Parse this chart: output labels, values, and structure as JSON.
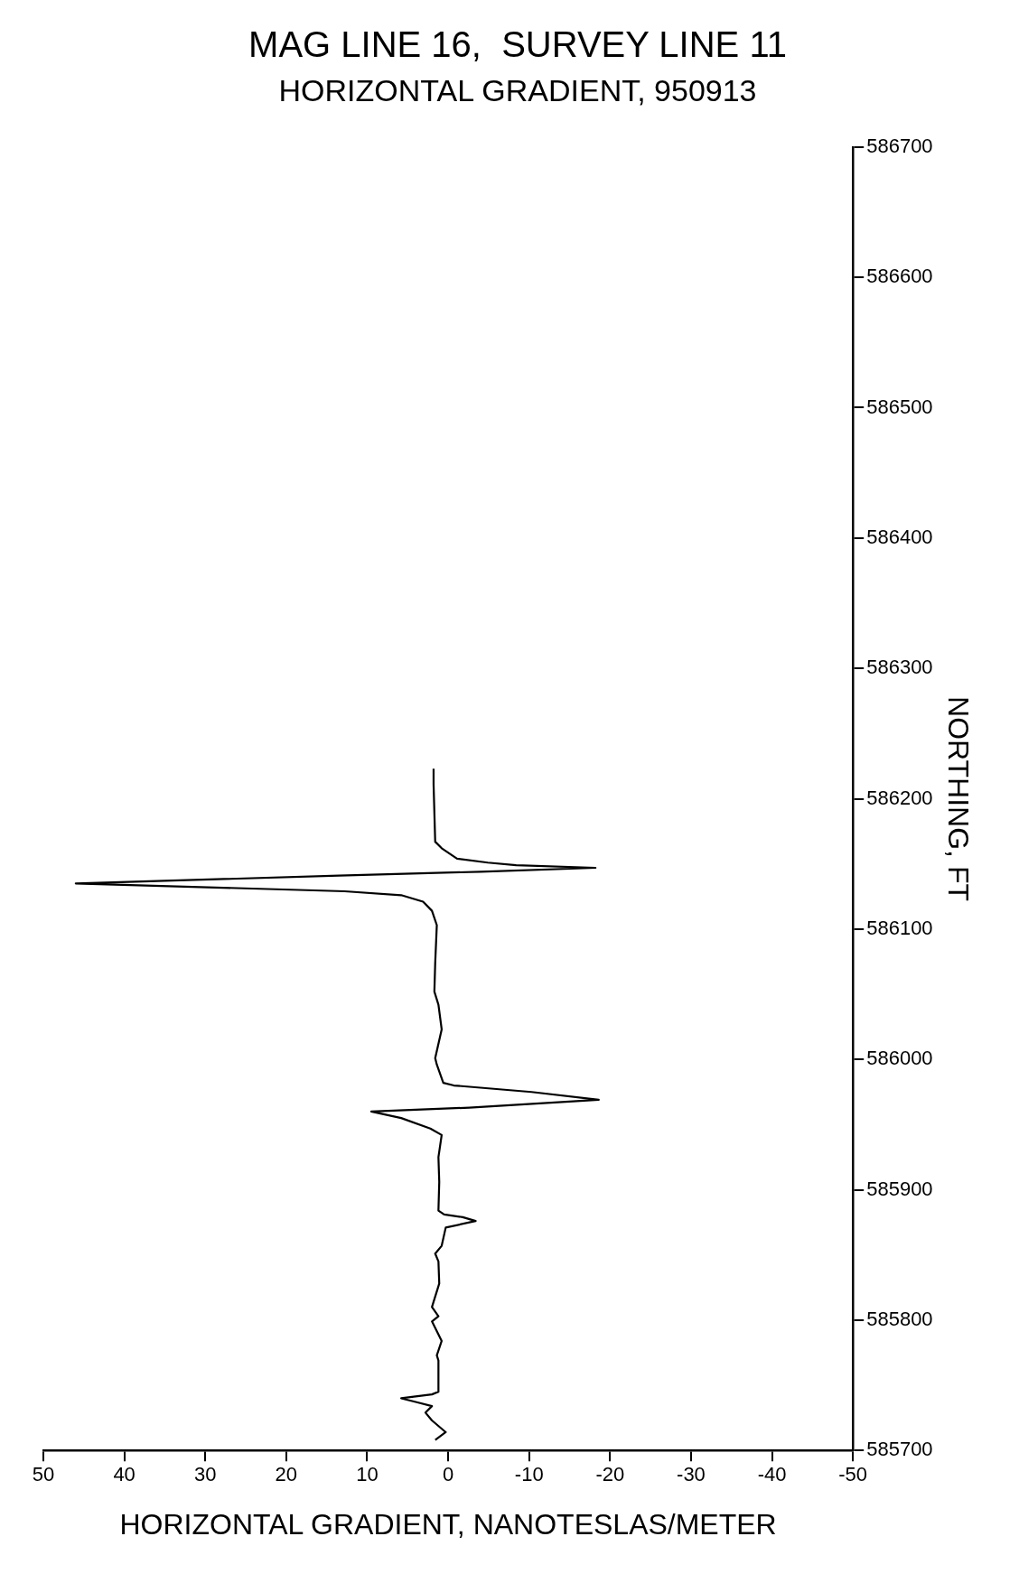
{
  "chart_data": {
    "type": "line",
    "title": "MAG LINE 16,  SURVEY LINE 11",
    "subtitle": "HORIZONTAL GRADIENT, 950913",
    "xlabel": "HORIZONTAL GRADIENT, NANOTESLAS/METER",
    "ylabel": "NORTHING, FT",
    "values": [
      585708,
      585714,
      585723,
      585729,
      585734,
      585737,
      585740,
      585743,
      585745,
      585769,
      585773,
      585784,
      585799,
      585803,
      585810,
      585828,
      585845,
      585851,
      585857,
      585871,
      585876,
      585879,
      585881,
      585884,
      585906,
      585925,
      585942,
      585947,
      585955,
      585960,
      585963,
      585969,
      585975,
      585980,
      585982,
      585996,
      586001,
      586023,
      586042,
      586052,
      586074,
      586103,
      586114,
      586121,
      586126,
      586129,
      586135,
      586141,
      586144,
      586147,
      586149,
      586151,
      586154,
      586162,
      586167,
      586211,
      586223
    ],
    "x": [
      1.6,
      0.3,
      2.0,
      2.8,
      2.0,
      3.9,
      5.8,
      2.0,
      1.2,
      1.2,
      1.4,
      0.8,
      2.0,
      1.2,
      2.0,
      1.1,
      1.2,
      1.6,
      0.8,
      0.3,
      -3.4,
      -1.8,
      0.5,
      1.2,
      1.1,
      1.2,
      0.8,
      2.2,
      5.8,
      9.5,
      -2.6,
      -18.6,
      -10.3,
      -0.7,
      0.6,
      1.4,
      1.6,
      0.8,
      1.2,
      1.7,
      1.6,
      1.4,
      2.0,
      3.1,
      5.8,
      12.8,
      46,
      13.5,
      -4,
      -18.2,
      -8.4,
      -4.9,
      -1.1,
      0.8,
      1.6,
      1.8,
      1.8
    ],
    "color": "#000000",
    "marker": "none",
    "line_style": "solid",
    "grid": false,
    "ylim": [
      585700,
      586700
    ],
    "yticks": [
      585700,
      585800,
      585900,
      586000,
      586100,
      586200,
      586300,
      586400,
      586500,
      586600,
      586700
    ],
    "xlim": [
      50,
      -50
    ],
    "xticks": [
      50,
      40,
      30,
      20,
      10,
      0,
      -10,
      -20,
      -30,
      -40,
      -50
    ]
  }
}
